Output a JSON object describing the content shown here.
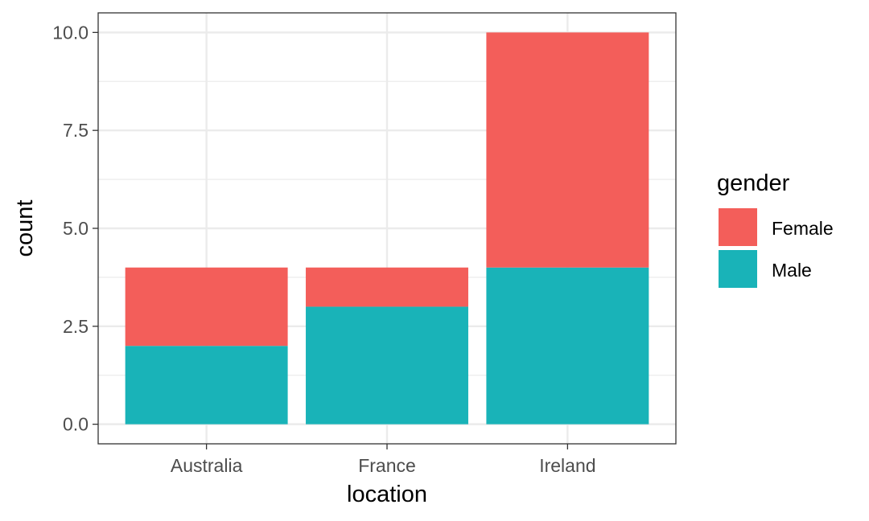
{
  "chart_data": {
    "type": "bar",
    "stacked": true,
    "categories": [
      "Australia",
      "France",
      "Ireland"
    ],
    "series": [
      {
        "name": "Female",
        "values": [
          2,
          1,
          6
        ],
        "color": "#F35E5A"
      },
      {
        "name": "Male",
        "values": [
          2,
          3,
          4
        ],
        "color": "#19B3B8"
      }
    ],
    "stack_order": [
      "Male",
      "Female"
    ],
    "xlabel": "location",
    "ylabel": "count",
    "ylim": [
      -0.5,
      10.5
    ],
    "y_ticks": [
      0,
      2.5,
      5,
      7.5,
      10
    ],
    "y_tick_labels": [
      "0.0",
      "2.5",
      "5.0",
      "7.5",
      "10.0"
    ],
    "legend": {
      "title": "gender",
      "placement": "right"
    },
    "grid": true,
    "theme": "bw"
  }
}
